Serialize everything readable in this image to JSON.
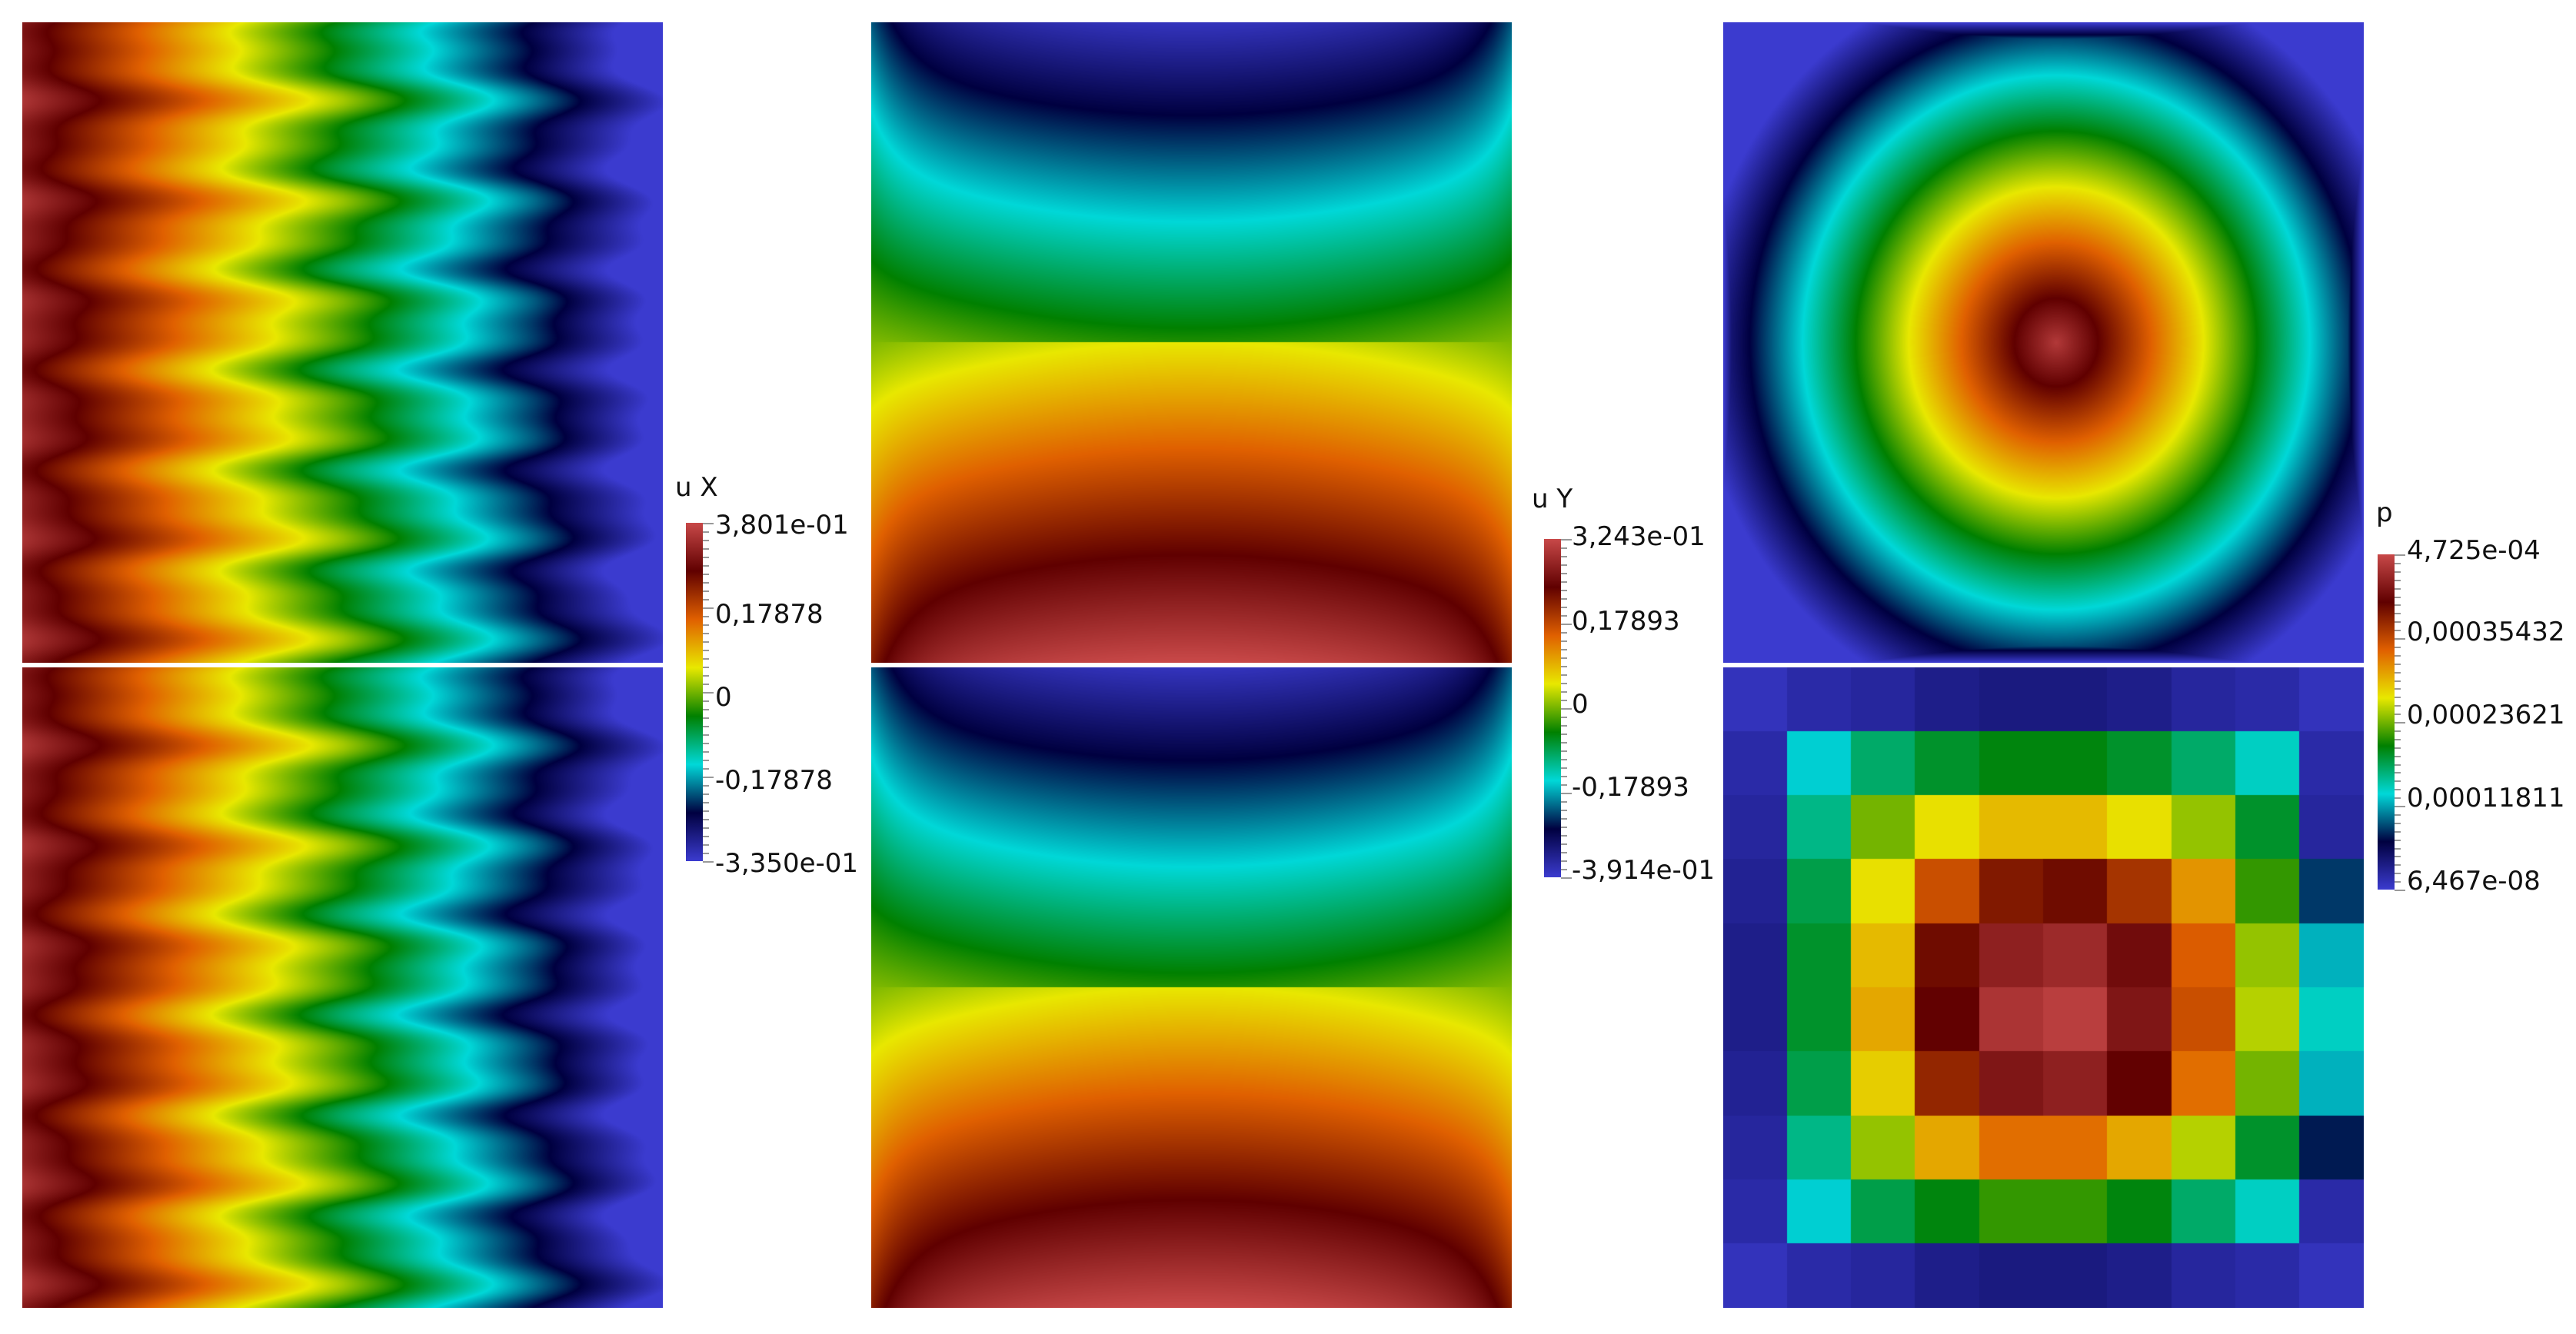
{
  "colormap": [
    "#3b3bcf",
    "#000040",
    "#00d8d8",
    "#008000",
    "#e8e800",
    "#e06000",
    "#600000",
    "#c84848"
  ],
  "legends": [
    {
      "id": "ux",
      "title": "u X",
      "max_label": "3,801e-01",
      "min_label": "-3,350e-01",
      "mid_labels": [
        "0,17878",
        "0",
        "-0,17878"
      ]
    },
    {
      "id": "uy",
      "title": "u Y",
      "max_label": "3,243e-01",
      "min_label": "-3,914e-01",
      "mid_labels": [
        "0,17893",
        "0",
        "-0,17893"
      ]
    },
    {
      "id": "p",
      "title": "p",
      "max_label": "4,725e-04",
      "min_label": "6,467e-08",
      "mid_labels": [
        "0,00035432",
        "0,00023621",
        "0,00011811"
      ]
    }
  ],
  "pressure_grid": [
    [
      0.02,
      0.04,
      0.05,
      0.07,
      0.08,
      0.08,
      0.07,
      0.05,
      0.04,
      0.02
    ],
    [
      0.04,
      0.28,
      0.36,
      0.4,
      0.42,
      0.42,
      0.4,
      0.36,
      0.3,
      0.04
    ],
    [
      0.05,
      0.34,
      0.5,
      0.58,
      0.62,
      0.62,
      0.58,
      0.52,
      0.4,
      0.05
    ],
    [
      0.06,
      0.38,
      0.58,
      0.74,
      0.82,
      0.84,
      0.78,
      0.66,
      0.46,
      0.18
    ],
    [
      0.07,
      0.4,
      0.62,
      0.84,
      0.92,
      0.94,
      0.88,
      0.72,
      0.52,
      0.26
    ],
    [
      0.07,
      0.4,
      0.64,
      0.86,
      0.96,
      0.98,
      0.9,
      0.74,
      0.54,
      0.3
    ],
    [
      0.06,
      0.38,
      0.6,
      0.8,
      0.9,
      0.92,
      0.86,
      0.7,
      0.5,
      0.26
    ],
    [
      0.05,
      0.34,
      0.52,
      0.64,
      0.7,
      0.7,
      0.64,
      0.54,
      0.4,
      0.16
    ],
    [
      0.04,
      0.28,
      0.38,
      0.42,
      0.46,
      0.46,
      0.42,
      0.36,
      0.3,
      0.04
    ],
    [
      0.02,
      0.04,
      0.05,
      0.07,
      0.08,
      0.08,
      0.07,
      0.05,
      0.04,
      0.02
    ]
  ]
}
